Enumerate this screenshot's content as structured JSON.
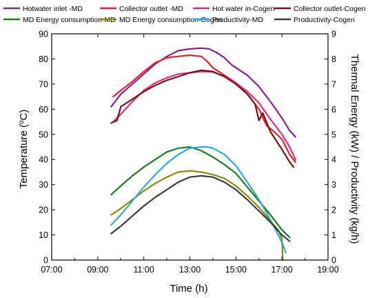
{
  "chart_data": {
    "type": "line",
    "xlabel": "Time (h)",
    "ylabel_left": "Temperature (°C)",
    "ylabel_right": "Thermal Energy (kW) / Productivity (kg/h)",
    "xlim": [
      "07:00",
      "19:00"
    ],
    "ylim_left": [
      0,
      90
    ],
    "ylim_right": [
      0,
      9
    ],
    "x_ticks": [
      "07:00",
      "09:00",
      "11:00",
      "13:00",
      "15:00",
      "17:00",
      "19:00"
    ],
    "y_left_ticks": [
      0,
      10,
      20,
      30,
      40,
      50,
      60,
      70,
      80,
      90
    ],
    "y_right_ticks": [
      0,
      1,
      2,
      3,
      4,
      5,
      6,
      7,
      8,
      9
    ],
    "grid": false,
    "legend_position": "top",
    "series": [
      {
        "name": "Hotwater inlet -MD",
        "axis": "left",
        "color": "#8b1a9c",
        "x": [
          "09:35",
          "10:00",
          "10:30",
          "11:00",
          "11:30",
          "12:00",
          "12:30",
          "13:00",
          "13:30",
          "13:50",
          "14:10",
          "14:30",
          "14:50",
          "15:10",
          "15:30",
          "16:00",
          "16:30",
          "17:00",
          "17:20",
          "17:35"
        ],
        "y": [
          61,
          66,
          70,
          74,
          78,
          81,
          83.3,
          84,
          84.3,
          84,
          82.5,
          80.5,
          77.5,
          75.5,
          73.5,
          69,
          63,
          56.5,
          51.5,
          49
        ]
      },
      {
        "name": "Collector outlet -MD",
        "axis": "left",
        "color": "#ee1c24",
        "x": [
          "09:40",
          "10:00",
          "10:30",
          "11:00",
          "11:30",
          "12:00",
          "12:30",
          "13:00",
          "13:30",
          "13:45",
          "14:00",
          "14:30",
          "15:00",
          "15:30",
          "16:00",
          "16:20",
          "16:40",
          "17:00",
          "17:20",
          "17:35"
        ],
        "y": [
          65,
          67.5,
          71,
          75,
          78.5,
          80.5,
          81,
          81.5,
          81,
          79,
          76.5,
          73.5,
          70.5,
          66,
          60,
          53.5,
          51,
          48,
          42,
          39
        ]
      },
      {
        "name": "Hot water in-Cogen",
        "axis": "left",
        "color": "#e8268c",
        "x": [
          "09:40",
          "10:00",
          "10:30",
          "11:00",
          "11:30",
          "12:00",
          "12:30",
          "13:00",
          "13:30",
          "14:00",
          "14:30",
          "15:00",
          "15:30",
          "16:00",
          "16:30",
          "17:00",
          "17:20",
          "17:35"
        ],
        "y": [
          55,
          58,
          63,
          67.5,
          70.5,
          72.5,
          74,
          74.5,
          75,
          74.8,
          73,
          70.5,
          67,
          62.5,
          56,
          50,
          45,
          40
        ]
      },
      {
        "name": "Collector outlet-Cogen",
        "axis": "left",
        "color": "#7a1010",
        "x": [
          "09:35",
          "09:50",
          "10:00",
          "10:30",
          "11:00",
          "11:30",
          "12:00",
          "12:30",
          "13:00",
          "13:30",
          "14:00",
          "14:30",
          "15:00",
          "15:30",
          "15:50",
          "16:00",
          "16:10",
          "16:30",
          "17:00",
          "17:20",
          "17:30"
        ],
        "y": [
          54.5,
          55.5,
          61,
          64,
          67,
          69.5,
          71.5,
          73,
          74.5,
          75.5,
          75,
          73,
          70,
          66,
          62,
          55.5,
          58.5,
          51,
          44,
          39,
          37
        ]
      },
      {
        "name": "MD Energy consumption-MD",
        "axis": "right",
        "color": "#1f7a1f",
        "x": [
          "09:35",
          "10:00",
          "10:30",
          "11:00",
          "11:30",
          "12:00",
          "12:30",
          "13:00",
          "13:30",
          "14:00",
          "14:30",
          "15:00",
          "15:30",
          "16:00",
          "16:30",
          "17:00",
          "17:20"
        ],
        "y": [
          2.6,
          2.95,
          3.35,
          3.7,
          4.0,
          4.3,
          4.45,
          4.5,
          4.35,
          4.1,
          3.8,
          3.45,
          2.9,
          2.35,
          1.8,
          1.2,
          0.9
        ]
      },
      {
        "name": "MD Energy consumption-Cogen",
        "axis": "right",
        "color": "#8a8a00",
        "x": [
          "09:35",
          "10:00",
          "10:30",
          "11:00",
          "11:30",
          "12:00",
          "12:30",
          "13:00",
          "13:30",
          "14:00",
          "14:30",
          "15:00",
          "15:30",
          "16:00",
          "16:30",
          "16:50",
          "17:00",
          "17:02"
        ],
        "y": [
          1.8,
          2.05,
          2.4,
          2.75,
          3.05,
          3.3,
          3.5,
          3.55,
          3.5,
          3.4,
          3.25,
          2.95,
          2.55,
          2.1,
          1.55,
          1.2,
          0.85,
          0.0
        ]
      },
      {
        "name": "Productivity-MD",
        "axis": "right",
        "color": "#2aa8e0",
        "x": [
          "09:35",
          "10:00",
          "10:30",
          "11:00",
          "11:30",
          "12:00",
          "12:30",
          "13:00",
          "13:30",
          "13:45",
          "14:00",
          "14:30",
          "15:00",
          "15:30",
          "16:00",
          "16:30",
          "17:00",
          "17:10"
        ],
        "y": [
          1.4,
          1.8,
          2.35,
          2.9,
          3.4,
          3.85,
          4.2,
          4.45,
          4.5,
          4.5,
          4.45,
          4.2,
          3.75,
          3.1,
          2.4,
          1.6,
          0.7,
          0.3
        ]
      },
      {
        "name": "Productivity-Cogen",
        "axis": "right",
        "color": "#3a3a3a",
        "x": [
          "09:35",
          "10:00",
          "10:30",
          "11:00",
          "11:30",
          "12:00",
          "12:30",
          "13:00",
          "13:30",
          "14:00",
          "14:30",
          "15:00",
          "15:30",
          "16:00",
          "16:30",
          "17:00",
          "17:20"
        ],
        "y": [
          1.05,
          1.35,
          1.75,
          2.15,
          2.5,
          2.8,
          3.1,
          3.3,
          3.35,
          3.3,
          3.1,
          2.8,
          2.4,
          1.95,
          1.5,
          1.0,
          0.75
        ]
      }
    ]
  }
}
